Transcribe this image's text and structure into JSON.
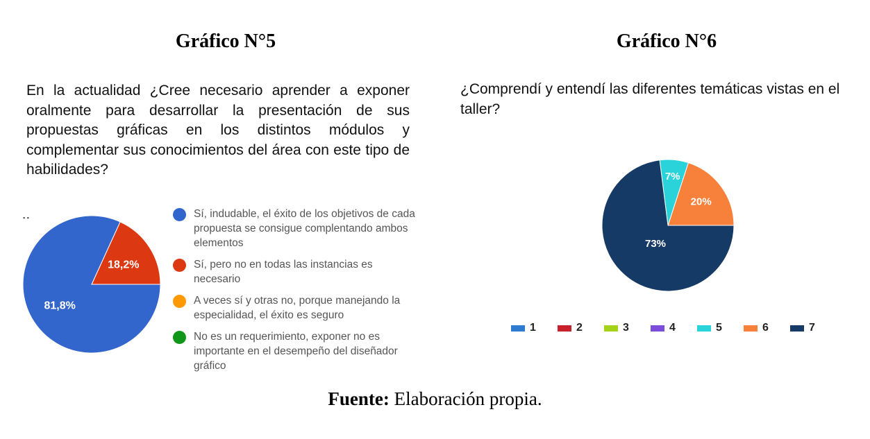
{
  "figure1": {
    "title": "Gráfico N°5",
    "question": "En la actualidad ¿Cree necesario aprender a exponer oralmente para desarrollar la presentación de sus propuestas gráficas en los distintos módulos y complementar sus conocimientos del área con este tipo de habilidades?"
  },
  "figure2": {
    "title": "Gráfico N°6",
    "question": "¿Comprendí y entendí las diferentes temáticas vistas en el taller?"
  },
  "source": {
    "label": "Fuente:",
    "text": " Elaboración propia."
  },
  "chart_data": [
    {
      "type": "pie",
      "categories": [
        "Sí, indudable, el éxito de los objetivos de cada propuesta se consigue complentando ambos elementos",
        "Sí, pero no en todas las instancias es necesario",
        "A veces sí y otras no, porque manejando la especialidad, el éxito es seguro",
        "No es un  requerimiento, exponer no es importante en el desempeño del diseñador gráfico"
      ],
      "values": [
        81.8,
        18.2,
        0,
        0
      ],
      "labels": [
        "81,8%",
        "18,2%",
        "",
        ""
      ],
      "colors": [
        "#3366cc",
        "#dc3912",
        "#ff9900",
        "#109618"
      ],
      "legend": "right"
    },
    {
      "type": "pie",
      "categories": [
        "1",
        "2",
        "3",
        "4",
        "5",
        "6",
        "7"
      ],
      "values": [
        0,
        0,
        0,
        0,
        7,
        20,
        73
      ],
      "labels": [
        "",
        "",
        "",
        "",
        "7%",
        "20%",
        "73%"
      ],
      "colors": [
        "#2e7bd1",
        "#c8202a",
        "#a5d21b",
        "#7c4ddb",
        "#29d3d9",
        "#f7803a",
        "#163a66"
      ],
      "legend": "bottom"
    }
  ]
}
